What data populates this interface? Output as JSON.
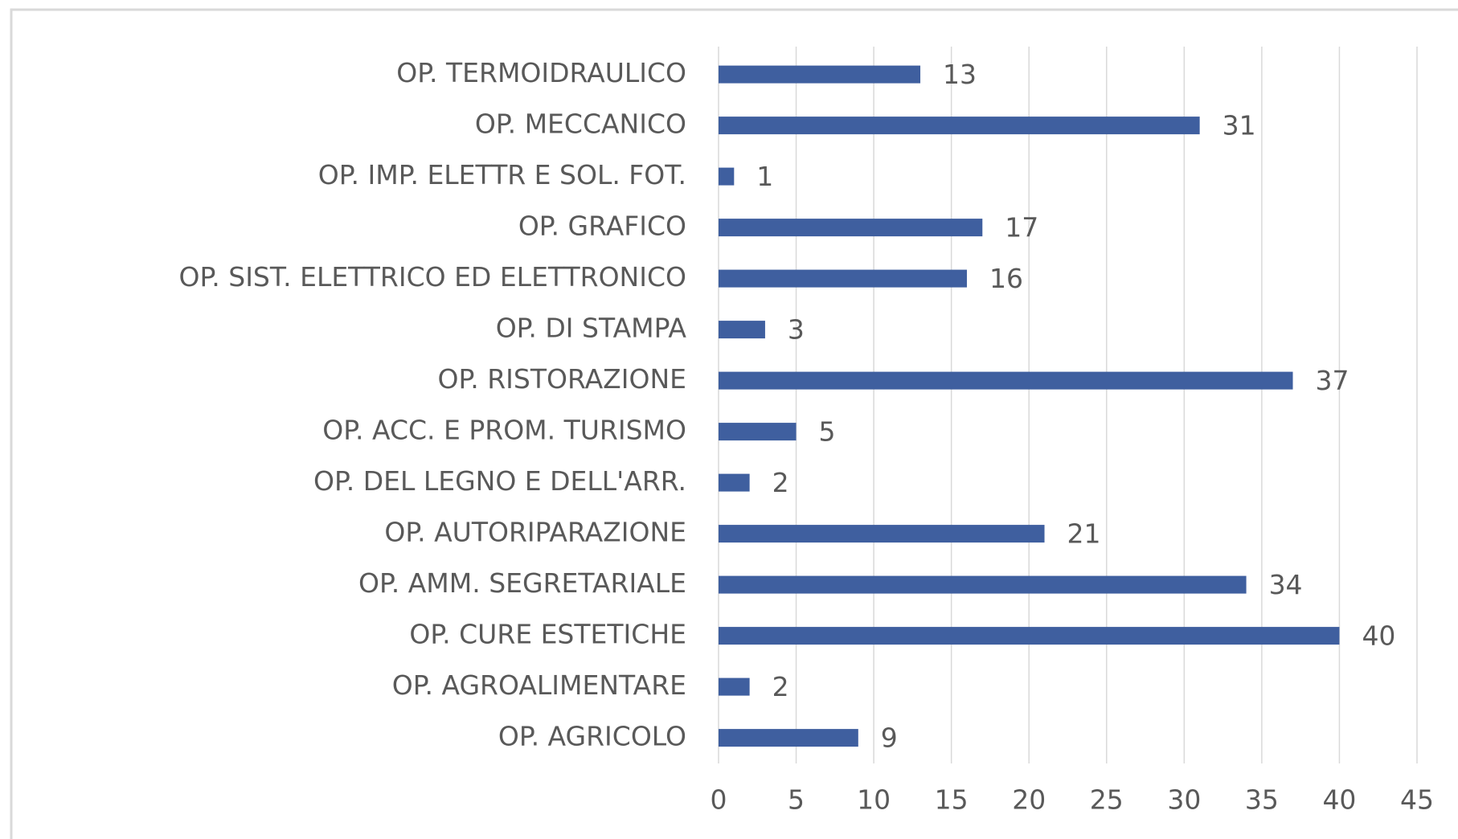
{
  "chart_data": {
    "type": "bar",
    "orientation": "horizontal",
    "categories": [
      "OP. TERMOIDRAULICO",
      "OP. MECCANICO",
      "OP. IMP. ELETTR E SOL. FOT.",
      "OP. GRAFICO",
      "OP. SIST. ELETTRICO ED ELETTRONICO",
      "OP. DI STAMPA",
      "OP. RISTORAZIONE",
      "OP. ACC. E PROM. TURISMO",
      "OP. DEL LEGNO E DELL'ARR.",
      "OP. AUTORIPARAZIONE",
      "OP. AMM. SEGRETARIALE",
      "OP. CURE ESTETICHE",
      "OP. AGROALIMENTARE",
      "OP. AGRICOLO"
    ],
    "values": [
      13,
      31,
      1,
      17,
      16,
      3,
      37,
      5,
      2,
      21,
      34,
      40,
      2,
      9
    ],
    "color": "#3f5f9f",
    "xlim": [
      0,
      45
    ],
    "xticks": [
      0,
      5,
      10,
      15,
      20,
      25,
      30,
      35,
      40,
      45
    ],
    "grid": true
  }
}
